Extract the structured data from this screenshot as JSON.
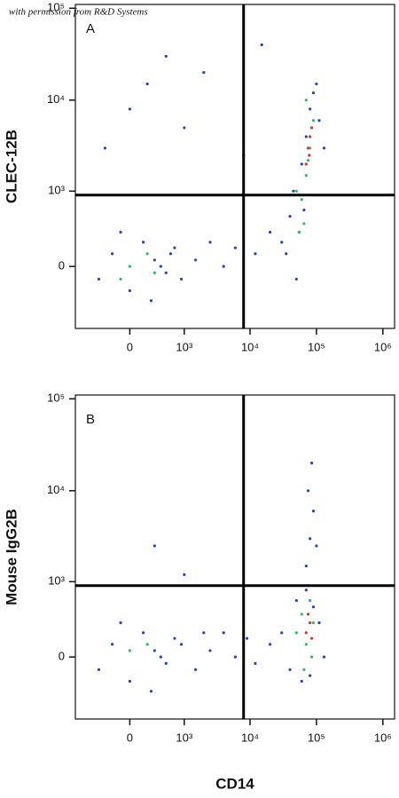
{
  "watermark": "with permission from R&D Systems",
  "chart_data": [
    {
      "type": "scatter",
      "scale": "biexponential",
      "panel": "A",
      "ylabel": "CLEC-12B",
      "xlim": [
        -1000,
        1500000
      ],
      "ylim": [
        -700,
        110000
      ],
      "xticks": [
        0,
        {
          "value": 1000,
          "label": "10³"
        },
        {
          "value": 10000,
          "label": "10⁴"
        },
        {
          "value": 100000,
          "label": "10⁵"
        },
        {
          "value": 1000000,
          "label": "10⁶"
        }
      ],
      "yticks": [
        0,
        {
          "value": 1000,
          "label": "10³"
        },
        {
          "value": 10000,
          "label": "10⁴"
        },
        {
          "value": 100000,
          "label": "10⁵"
        }
      ],
      "gates": {
        "x": 8000,
        "y": 900
      },
      "series": [
        {
          "color": "#2744b8",
          "x": [
            -400,
            -200,
            0,
            150,
            300,
            500,
            700,
            -100,
            250,
            400,
            600,
            900,
            1500,
            2500,
            4000,
            6000,
            12000,
            20000,
            -300,
            0,
            200,
            500,
            1000,
            2000,
            30000,
            40000,
            45000,
            50000,
            60000,
            70000,
            80000,
            90000,
            110000,
            130000,
            35000,
            55000,
            65000,
            100000,
            15000,
            8000
          ],
          "values": [
            -100,
            100,
            -200,
            200,
            50,
            -50,
            150,
            300,
            -300,
            0,
            100,
            -100,
            50,
            200,
            0,
            150,
            100,
            300,
            3000,
            8000,
            15000,
            30000,
            5000,
            20000,
            200,
            500,
            1000,
            -100,
            2000,
            4000,
            8000,
            12000,
            6000,
            3000,
            100,
            300,
            600,
            15000,
            40000,
            2500
          ]
        },
        {
          "color": "#2fb86a",
          "x": [
            60000,
            70000,
            80000,
            65000,
            75000,
            90000,
            55000,
            85000,
            50000,
            70000,
            0,
            200,
            -100,
            300
          ],
          "values": [
            800,
            1500,
            3000,
            400,
            2200,
            6000,
            300,
            5000,
            1000,
            10000,
            0,
            100,
            -100,
            -50
          ]
        },
        {
          "color": "#e03020",
          "x": [
            70000,
            75000,
            80000,
            85000,
            78000
          ],
          "values": [
            2000,
            3000,
            4000,
            5000,
            2500
          ]
        }
      ]
    },
    {
      "type": "scatter",
      "scale": "biexponential",
      "panel": "B",
      "ylabel": "Mouse IgG2B",
      "xlabel": "CD14",
      "xlim": [
        -1000,
        1500000
      ],
      "ylim": [
        -700,
        110000
      ],
      "xticks": [
        0,
        {
          "value": 1000,
          "label": "10³"
        },
        {
          "value": 10000,
          "label": "10⁴"
        },
        {
          "value": 100000,
          "label": "10⁵"
        },
        {
          "value": 1000000,
          "label": "10⁶"
        }
      ],
      "yticks": [
        0,
        {
          "value": 1000,
          "label": "10³"
        },
        {
          "value": 10000,
          "label": "10⁴"
        },
        {
          "value": 100000,
          "label": "10⁵"
        }
      ],
      "gates": {
        "x": 8000,
        "y": 900
      },
      "series": [
        {
          "color": "#2744b8",
          "x": [
            -400,
            -200,
            0,
            150,
            300,
            500,
            700,
            -100,
            250,
            400,
            900,
            1500,
            2500,
            4000,
            6000,
            9000,
            12000,
            20000,
            30000,
            40000,
            50000,
            60000,
            70000,
            80000,
            90000,
            110000,
            130000,
            70000,
            80000,
            90000,
            75000,
            85000,
            100000,
            300,
            1000,
            2000
          ],
          "values": [
            -100,
            100,
            -200,
            200,
            50,
            -50,
            150,
            300,
            -300,
            0,
            100,
            -100,
            50,
            200,
            0,
            150,
            -50,
            100,
            200,
            -100,
            600,
            -200,
            800,
            -150,
            500,
            300,
            0,
            1500,
            3000,
            6000,
            10000,
            20000,
            2500,
            2500,
            1200,
            200
          ]
        },
        {
          "color": "#2fb86a",
          "x": [
            50000,
            60000,
            70000,
            80000,
            90000,
            65000,
            85000,
            0,
            200
          ],
          "values": [
            200,
            400,
            100,
            600,
            300,
            -100,
            0,
            50,
            100
          ]
        },
        {
          "color": "#e03020",
          "x": [
            70000,
            80000,
            75000,
            85000
          ],
          "values": [
            200,
            300,
            400,
            150
          ]
        }
      ]
    }
  ]
}
